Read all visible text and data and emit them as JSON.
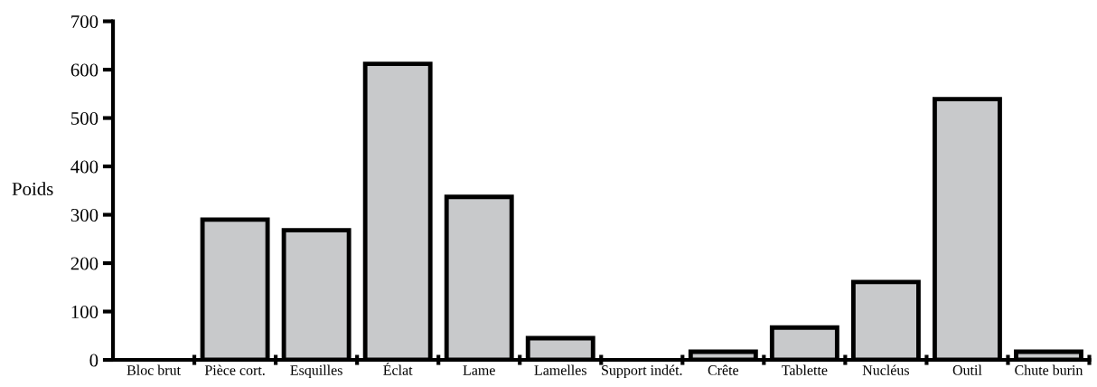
{
  "chart_data": {
    "type": "bar",
    "ylabel": "Poids",
    "categories": [
      "Bloc brut",
      "Pièce cort.",
      "Esquilles",
      "Éclat",
      "Lame",
      "Lamelles",
      "Support indét.",
      "Crête",
      "Tablette",
      "Nucléus",
      "Outil",
      "Chute burin"
    ],
    "values": [
      0,
      290,
      268,
      612,
      337,
      45,
      0,
      17,
      67,
      161,
      539,
      17
    ],
    "color": "#c8c9cb",
    "ylim": [
      0,
      700
    ],
    "yticks": [
      0,
      100,
      200,
      300,
      400,
      500,
      600,
      700
    ],
    "grid": false
  }
}
